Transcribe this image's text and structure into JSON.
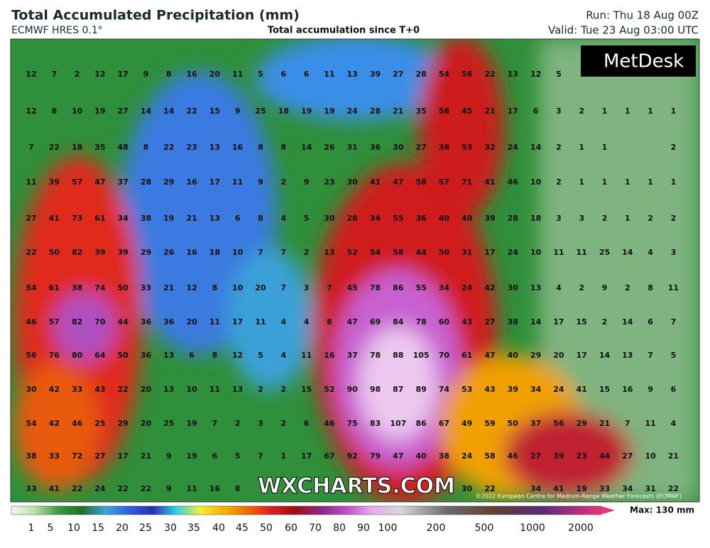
{
  "header": {
    "title": "Total Accumulated Precipitation (mm)",
    "model": "ECMWF HRES 0.1°",
    "subtitle": "Total accumulation since T+0",
    "run": "Run: Thu 18 Aug 00Z",
    "valid": "Valid: Tue 23 Aug 03:00 UTC"
  },
  "grid": {
    "rows": [
      [
        12,
        7,
        2,
        12,
        17,
        9,
        8,
        16,
        20,
        11,
        5,
        6,
        6,
        11,
        13,
        39,
        27,
        28,
        54,
        56,
        22,
        13,
        12,
        5,
        null,
        null,
        null,
        null,
        null
      ],
      [
        12,
        8,
        10,
        19,
        27,
        14,
        14,
        22,
        15,
        9,
        25,
        18,
        19,
        19,
        24,
        28,
        21,
        35,
        58,
        45,
        21,
        17,
        6,
        3,
        2,
        1,
        1,
        1,
        1
      ],
      [
        7,
        22,
        18,
        35,
        48,
        8,
        22,
        23,
        13,
        16,
        8,
        8,
        14,
        26,
        31,
        36,
        30,
        27,
        38,
        53,
        32,
        24,
        14,
        2,
        1,
        1,
        null,
        null,
        2
      ],
      [
        11,
        39,
        57,
        47,
        37,
        28,
        29,
        16,
        17,
        11,
        9,
        2,
        9,
        23,
        30,
        41,
        47,
        58,
        57,
        71,
        41,
        46,
        10,
        2,
        1,
        1,
        1,
        1,
        1
      ],
      [
        27,
        41,
        73,
        61,
        34,
        38,
        19,
        21,
        13,
        6,
        8,
        4,
        5,
        30,
        28,
        34,
        55,
        36,
        40,
        40,
        39,
        28,
        18,
        3,
        3,
        2,
        1,
        2,
        2
      ],
      [
        22,
        50,
        82,
        39,
        39,
        29,
        26,
        16,
        18,
        10,
        7,
        7,
        2,
        13,
        52,
        54,
        58,
        44,
        50,
        31,
        17,
        24,
        10,
        11,
        11,
        25,
        14,
        4,
        3
      ],
      [
        54,
        61,
        38,
        74,
        50,
        33,
        21,
        12,
        8,
        10,
        20,
        7,
        3,
        7,
        45,
        78,
        86,
        55,
        34,
        24,
        42,
        30,
        13,
        4,
        2,
        9,
        2,
        8,
        11
      ],
      [
        46,
        57,
        82,
        70,
        44,
        36,
        36,
        20,
        11,
        17,
        11,
        4,
        4,
        8,
        47,
        69,
        84,
        78,
        60,
        43,
        27,
        38,
        14,
        17,
        15,
        2,
        14,
        6,
        7
      ],
      [
        56,
        76,
        80,
        64,
        50,
        36,
        13,
        6,
        8,
        12,
        5,
        4,
        11,
        16,
        37,
        78,
        88,
        105,
        70,
        61,
        47,
        40,
        29,
        20,
        17,
        14,
        13,
        7,
        5
      ],
      [
        30,
        42,
        33,
        43,
        22,
        20,
        13,
        10,
        11,
        13,
        2,
        2,
        15,
        52,
        90,
        98,
        87,
        89,
        74,
        53,
        43,
        39,
        34,
        24,
        41,
        15,
        16,
        9,
        6
      ],
      [
        54,
        42,
        46,
        25,
        29,
        20,
        25,
        19,
        7,
        2,
        3,
        2,
        6,
        46,
        75,
        83,
        107,
        86,
        67,
        49,
        59,
        50,
        37,
        56,
        29,
        21,
        7,
        11,
        4
      ],
      [
        38,
        33,
        72,
        27,
        17,
        21,
        9,
        19,
        6,
        5,
        7,
        1,
        17,
        67,
        92,
        79,
        47,
        40,
        38,
        24,
        58,
        46,
        27,
        39,
        23,
        44,
        27,
        10,
        21
      ],
      [
        33,
        41,
        22,
        24,
        22,
        22,
        9,
        11,
        16,
        8,
        null,
        null,
        null,
        null,
        null,
        null,
        null,
        null,
        null,
        30,
        22,
        null,
        34,
        41,
        19,
        33,
        34,
        31,
        22
      ]
    ]
  },
  "legend": {
    "labels": [
      1,
      5,
      10,
      15,
      20,
      25,
      30,
      35,
      40,
      45,
      50,
      60,
      70,
      80,
      90,
      100,
      200,
      500,
      1000,
      2000
    ],
    "max": "Max: 130 mm"
  },
  "logo": "MetDesk",
  "watermark": "WXCHARTS.COM",
  "copyright": "©2022 European Centre for Medium-Range Weather Forecasts (ECMWF)"
}
